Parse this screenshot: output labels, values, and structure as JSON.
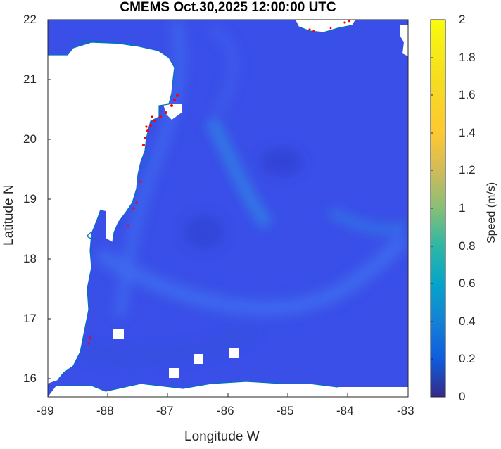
{
  "title": "CMEMS Oct.30,2025 12:00:00 UTC",
  "xlabel": "Longitude W",
  "ylabel": "Latitude N",
  "x_ticks": [
    "-89",
    "-88",
    "-87",
    "-86",
    "-85",
    "-84",
    "-83"
  ],
  "y_ticks": [
    "22",
    "21",
    "20",
    "19",
    "18",
    "17",
    "16"
  ],
  "colorbar": {
    "label": "Speed (m/s)",
    "ticks": [
      "2",
      "1.8",
      "1.6",
      "1.4",
      "1.2",
      "1",
      "0.8",
      "0.6",
      "0.4",
      "0.2",
      "0"
    ],
    "range": [
      0,
      2
    ],
    "colormap": "parula"
  },
  "map_extent": {
    "lon": [
      -89,
      -83
    ],
    "lat": [
      15.7,
      22
    ]
  },
  "colors": {
    "ocean_base": "#3a4fe8",
    "current_highlight": "#2f86e6",
    "coast": "#0072bd",
    "land": "#ffffff",
    "markers": "#ff0000"
  }
}
